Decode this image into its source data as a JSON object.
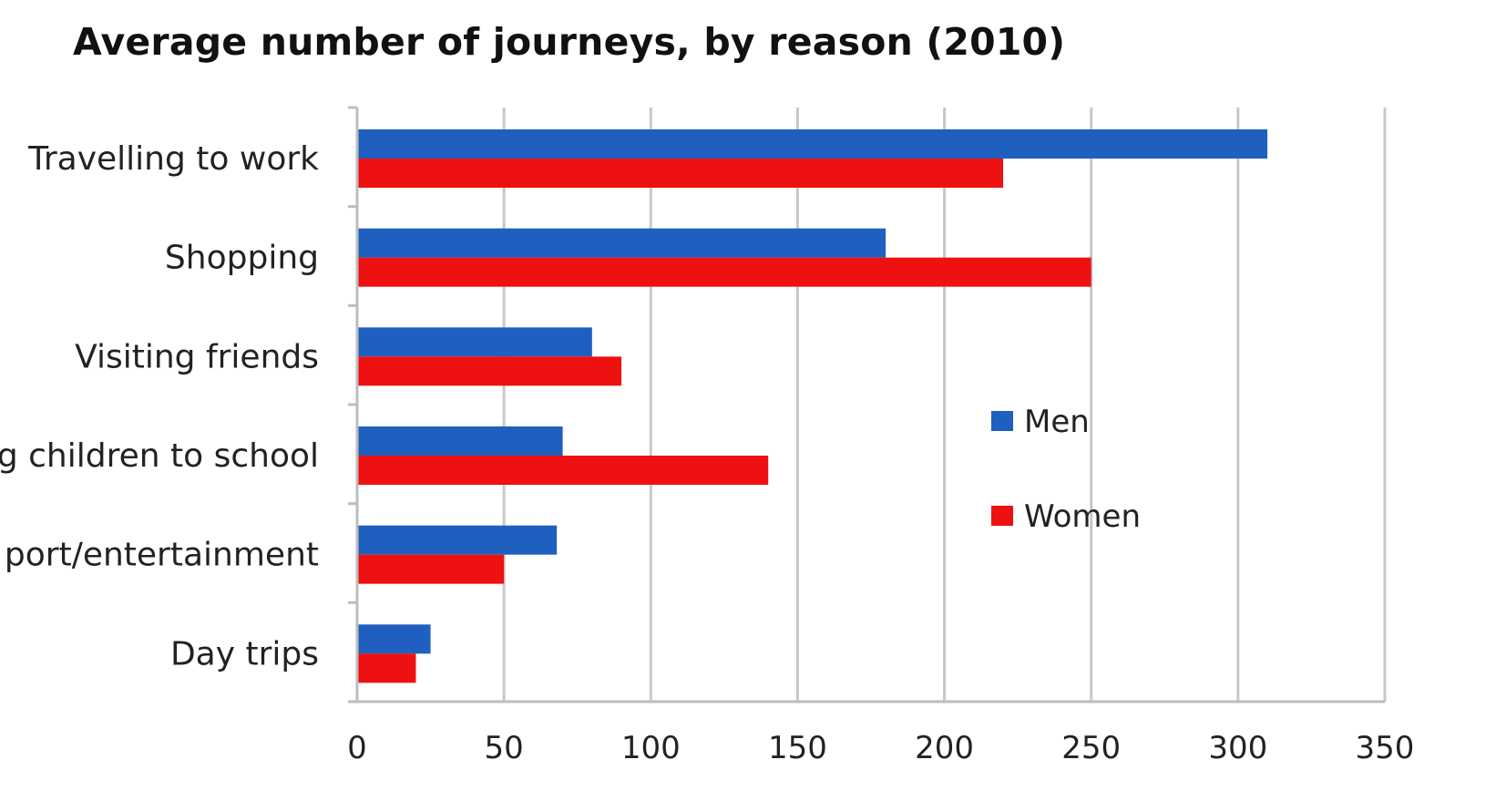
{
  "chart_data": {
    "type": "bar",
    "orientation": "horizontal",
    "title": "Average number of journeys, by reason (2010)",
    "categories": [
      "Travelling to work",
      "Shopping",
      "Visiting friends",
      "Taking children to school",
      "Sport/entertainment",
      "Day trips"
    ],
    "categories_visible": [
      "Travelling to work",
      "Shopping",
      "Visiting friends",
      "g children to school",
      "port/entertainment",
      "Day trips"
    ],
    "series": [
      {
        "name": "Men",
        "color": "#1f5fbf",
        "values": [
          310,
          180,
          80,
          70,
          68,
          25
        ]
      },
      {
        "name": "Women",
        "color": "#ee1111",
        "values": [
          220,
          250,
          90,
          140,
          50,
          20
        ]
      }
    ],
    "xlim": [
      0,
      350
    ],
    "xticks": [
      "0",
      "50",
      "100",
      "150",
      "200",
      "250",
      "300",
      "350"
    ],
    "grid": true,
    "legend": "right"
  }
}
